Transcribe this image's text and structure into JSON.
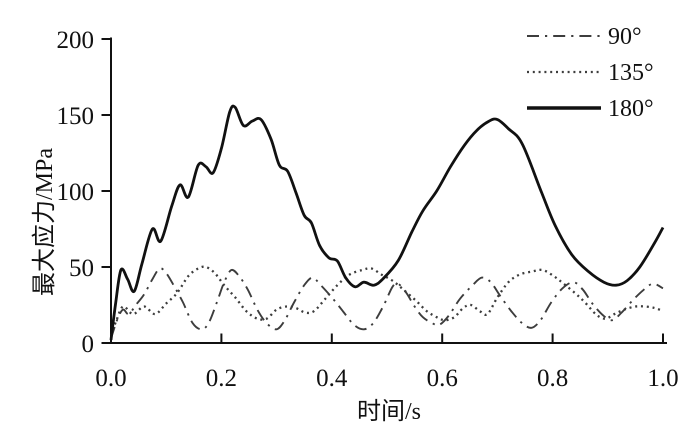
{
  "figure": {
    "background": "#ffffff",
    "ink_color": "#111111"
  },
  "chart_data": {
    "type": "line",
    "title": "",
    "xlabel": "时间/s",
    "ylabel": "最大应力/MPa",
    "xlim": [
      0,
      1.0
    ],
    "ylim": [
      0,
      200
    ],
    "grid": false,
    "xticks": {
      "values": [
        0,
        0.2,
        0.4,
        0.6,
        0.8,
        1.0
      ],
      "labels": [
        "0.0",
        "0.2",
        "0.4",
        "0.6",
        "0.8",
        "1.0"
      ]
    },
    "yticks": {
      "values": [
        0,
        50,
        100,
        150,
        200
      ],
      "labels": [
        "0",
        "50",
        "100",
        "150",
        "200"
      ]
    },
    "legend": {
      "position": "top-right",
      "entries": [
        "90°",
        "135°",
        "180°"
      ]
    },
    "series": [
      {
        "name": "90°",
        "line_style": "dash-dot",
        "color": "#3d3d3d",
        "width": 1.9,
        "points": [
          [
            0,
            3
          ],
          [
            0.012,
            16
          ],
          [
            0.022,
            22
          ],
          [
            0.032,
            19
          ],
          [
            0.045,
            25
          ],
          [
            0.06,
            32
          ],
          [
            0.075,
            42
          ],
          [
            0.088,
            49
          ],
          [
            0.1,
            46
          ],
          [
            0.115,
            37
          ],
          [
            0.13,
            27
          ],
          [
            0.148,
            13
          ],
          [
            0.165,
            9
          ],
          [
            0.178,
            14
          ],
          [
            0.192,
            27
          ],
          [
            0.205,
            40
          ],
          [
            0.218,
            48
          ],
          [
            0.232,
            44
          ],
          [
            0.248,
            35
          ],
          [
            0.265,
            22
          ],
          [
            0.282,
            13
          ],
          [
            0.3,
            9
          ],
          [
            0.315,
            15
          ],
          [
            0.332,
            27
          ],
          [
            0.35,
            38
          ],
          [
            0.365,
            43
          ],
          [
            0.38,
            38
          ],
          [
            0.4,
            30
          ],
          [
            0.42,
            21
          ],
          [
            0.44,
            12
          ],
          [
            0.458,
            9
          ],
          [
            0.475,
            13
          ],
          [
            0.493,
            24
          ],
          [
            0.51,
            37
          ],
          [
            0.52,
            39
          ],
          [
            0.535,
            33
          ],
          [
            0.55,
            24
          ],
          [
            0.565,
            17
          ],
          [
            0.582,
            13
          ],
          [
            0.595,
            12
          ],
          [
            0.612,
            18
          ],
          [
            0.632,
            29
          ],
          [
            0.655,
            38
          ],
          [
            0.672,
            43
          ],
          [
            0.688,
            40
          ],
          [
            0.705,
            31
          ],
          [
            0.725,
            21
          ],
          [
            0.745,
            13
          ],
          [
            0.762,
            10
          ],
          [
            0.778,
            15
          ],
          [
            0.798,
            27
          ],
          [
            0.818,
            36
          ],
          [
            0.838,
            40
          ],
          [
            0.855,
            35
          ],
          [
            0.872,
            26
          ],
          [
            0.892,
            18
          ],
          [
            0.908,
            15
          ],
          [
            0.925,
            20
          ],
          [
            0.945,
            28
          ],
          [
            0.965,
            35
          ],
          [
            0.982,
            39
          ],
          [
            1,
            36
          ]
        ]
      },
      {
        "name": "135°",
        "line_style": "dotted",
        "color": "#3d3d3d",
        "width": 2.3,
        "points": [
          [
            0,
            5
          ],
          [
            0.01,
            15
          ],
          [
            0.022,
            24
          ],
          [
            0.04,
            19
          ],
          [
            0.06,
            24
          ],
          [
            0.08,
            19
          ],
          [
            0.1,
            26
          ],
          [
            0.12,
            33
          ],
          [
            0.14,
            44
          ],
          [
            0.158,
            49
          ],
          [
            0.172,
            50
          ],
          [
            0.188,
            46
          ],
          [
            0.205,
            38
          ],
          [
            0.225,
            30
          ],
          [
            0.245,
            21
          ],
          [
            0.265,
            16
          ],
          [
            0.282,
            16
          ],
          [
            0.3,
            22
          ],
          [
            0.318,
            24
          ],
          [
            0.335,
            23
          ],
          [
            0.352,
            20
          ],
          [
            0.368,
            21
          ],
          [
            0.388,
            29
          ],
          [
            0.41,
            38
          ],
          [
            0.432,
            45
          ],
          [
            0.455,
            48
          ],
          [
            0.472,
            49
          ],
          [
            0.49,
            45
          ],
          [
            0.51,
            41
          ],
          [
            0.53,
            35
          ],
          [
            0.552,
            28
          ],
          [
            0.572,
            21
          ],
          [
            0.59,
            17
          ],
          [
            0.605,
            15
          ],
          [
            0.622,
            17
          ],
          [
            0.638,
            23
          ],
          [
            0.652,
            25
          ],
          [
            0.668,
            21
          ],
          [
            0.682,
            19
          ],
          [
            0.7,
            30
          ],
          [
            0.72,
            40
          ],
          [
            0.74,
            45
          ],
          [
            0.762,
            47
          ],
          [
            0.782,
            48
          ],
          [
            0.802,
            44
          ],
          [
            0.82,
            39
          ],
          [
            0.84,
            33
          ],
          [
            0.858,
            27
          ],
          [
            0.878,
            19
          ],
          [
            0.895,
            16
          ],
          [
            0.912,
            19
          ],
          [
            0.93,
            22
          ],
          [
            0.95,
            24
          ],
          [
            0.968,
            24
          ],
          [
            0.985,
            23
          ],
          [
            1,
            21
          ]
        ]
      },
      {
        "name": "180°",
        "line_style": "solid",
        "color": "#111111",
        "width": 2.8,
        "points": [
          [
            0,
            2
          ],
          [
            0.008,
            25
          ],
          [
            0.018,
            48
          ],
          [
            0.03,
            42
          ],
          [
            0.042,
            34
          ],
          [
            0.056,
            52
          ],
          [
            0.075,
            75
          ],
          [
            0.09,
            67
          ],
          [
            0.11,
            90
          ],
          [
            0.125,
            104
          ],
          [
            0.14,
            96
          ],
          [
            0.158,
            117
          ],
          [
            0.172,
            116
          ],
          [
            0.185,
            112
          ],
          [
            0.2,
            128
          ],
          [
            0.215,
            152
          ],
          [
            0.225,
            155
          ],
          [
            0.24,
            143
          ],
          [
            0.256,
            146
          ],
          [
            0.272,
            147
          ],
          [
            0.29,
            134
          ],
          [
            0.305,
            117
          ],
          [
            0.32,
            113
          ],
          [
            0.335,
            99
          ],
          [
            0.35,
            84
          ],
          [
            0.363,
            79
          ],
          [
            0.378,
            64
          ],
          [
            0.395,
            56
          ],
          [
            0.41,
            54
          ],
          [
            0.425,
            43
          ],
          [
            0.442,
            37
          ],
          [
            0.458,
            40
          ],
          [
            0.476,
            38
          ],
          [
            0.492,
            42
          ],
          [
            0.52,
            54
          ],
          [
            0.545,
            73
          ],
          [
            0.565,
            87
          ],
          [
            0.59,
            100
          ],
          [
            0.615,
            116
          ],
          [
            0.64,
            130
          ],
          [
            0.663,
            140
          ],
          [
            0.685,
            146
          ],
          [
            0.7,
            147
          ],
          [
            0.72,
            141
          ],
          [
            0.745,
            131
          ],
          [
            0.78,
            99
          ],
          [
            0.805,
            77
          ],
          [
            0.835,
            58
          ],
          [
            0.865,
            47
          ],
          [
            0.893,
            40
          ],
          [
            0.915,
            38
          ],
          [
            0.935,
            41
          ],
          [
            0.958,
            50
          ],
          [
            0.985,
            66
          ],
          [
            1,
            76
          ]
        ]
      }
    ]
  }
}
